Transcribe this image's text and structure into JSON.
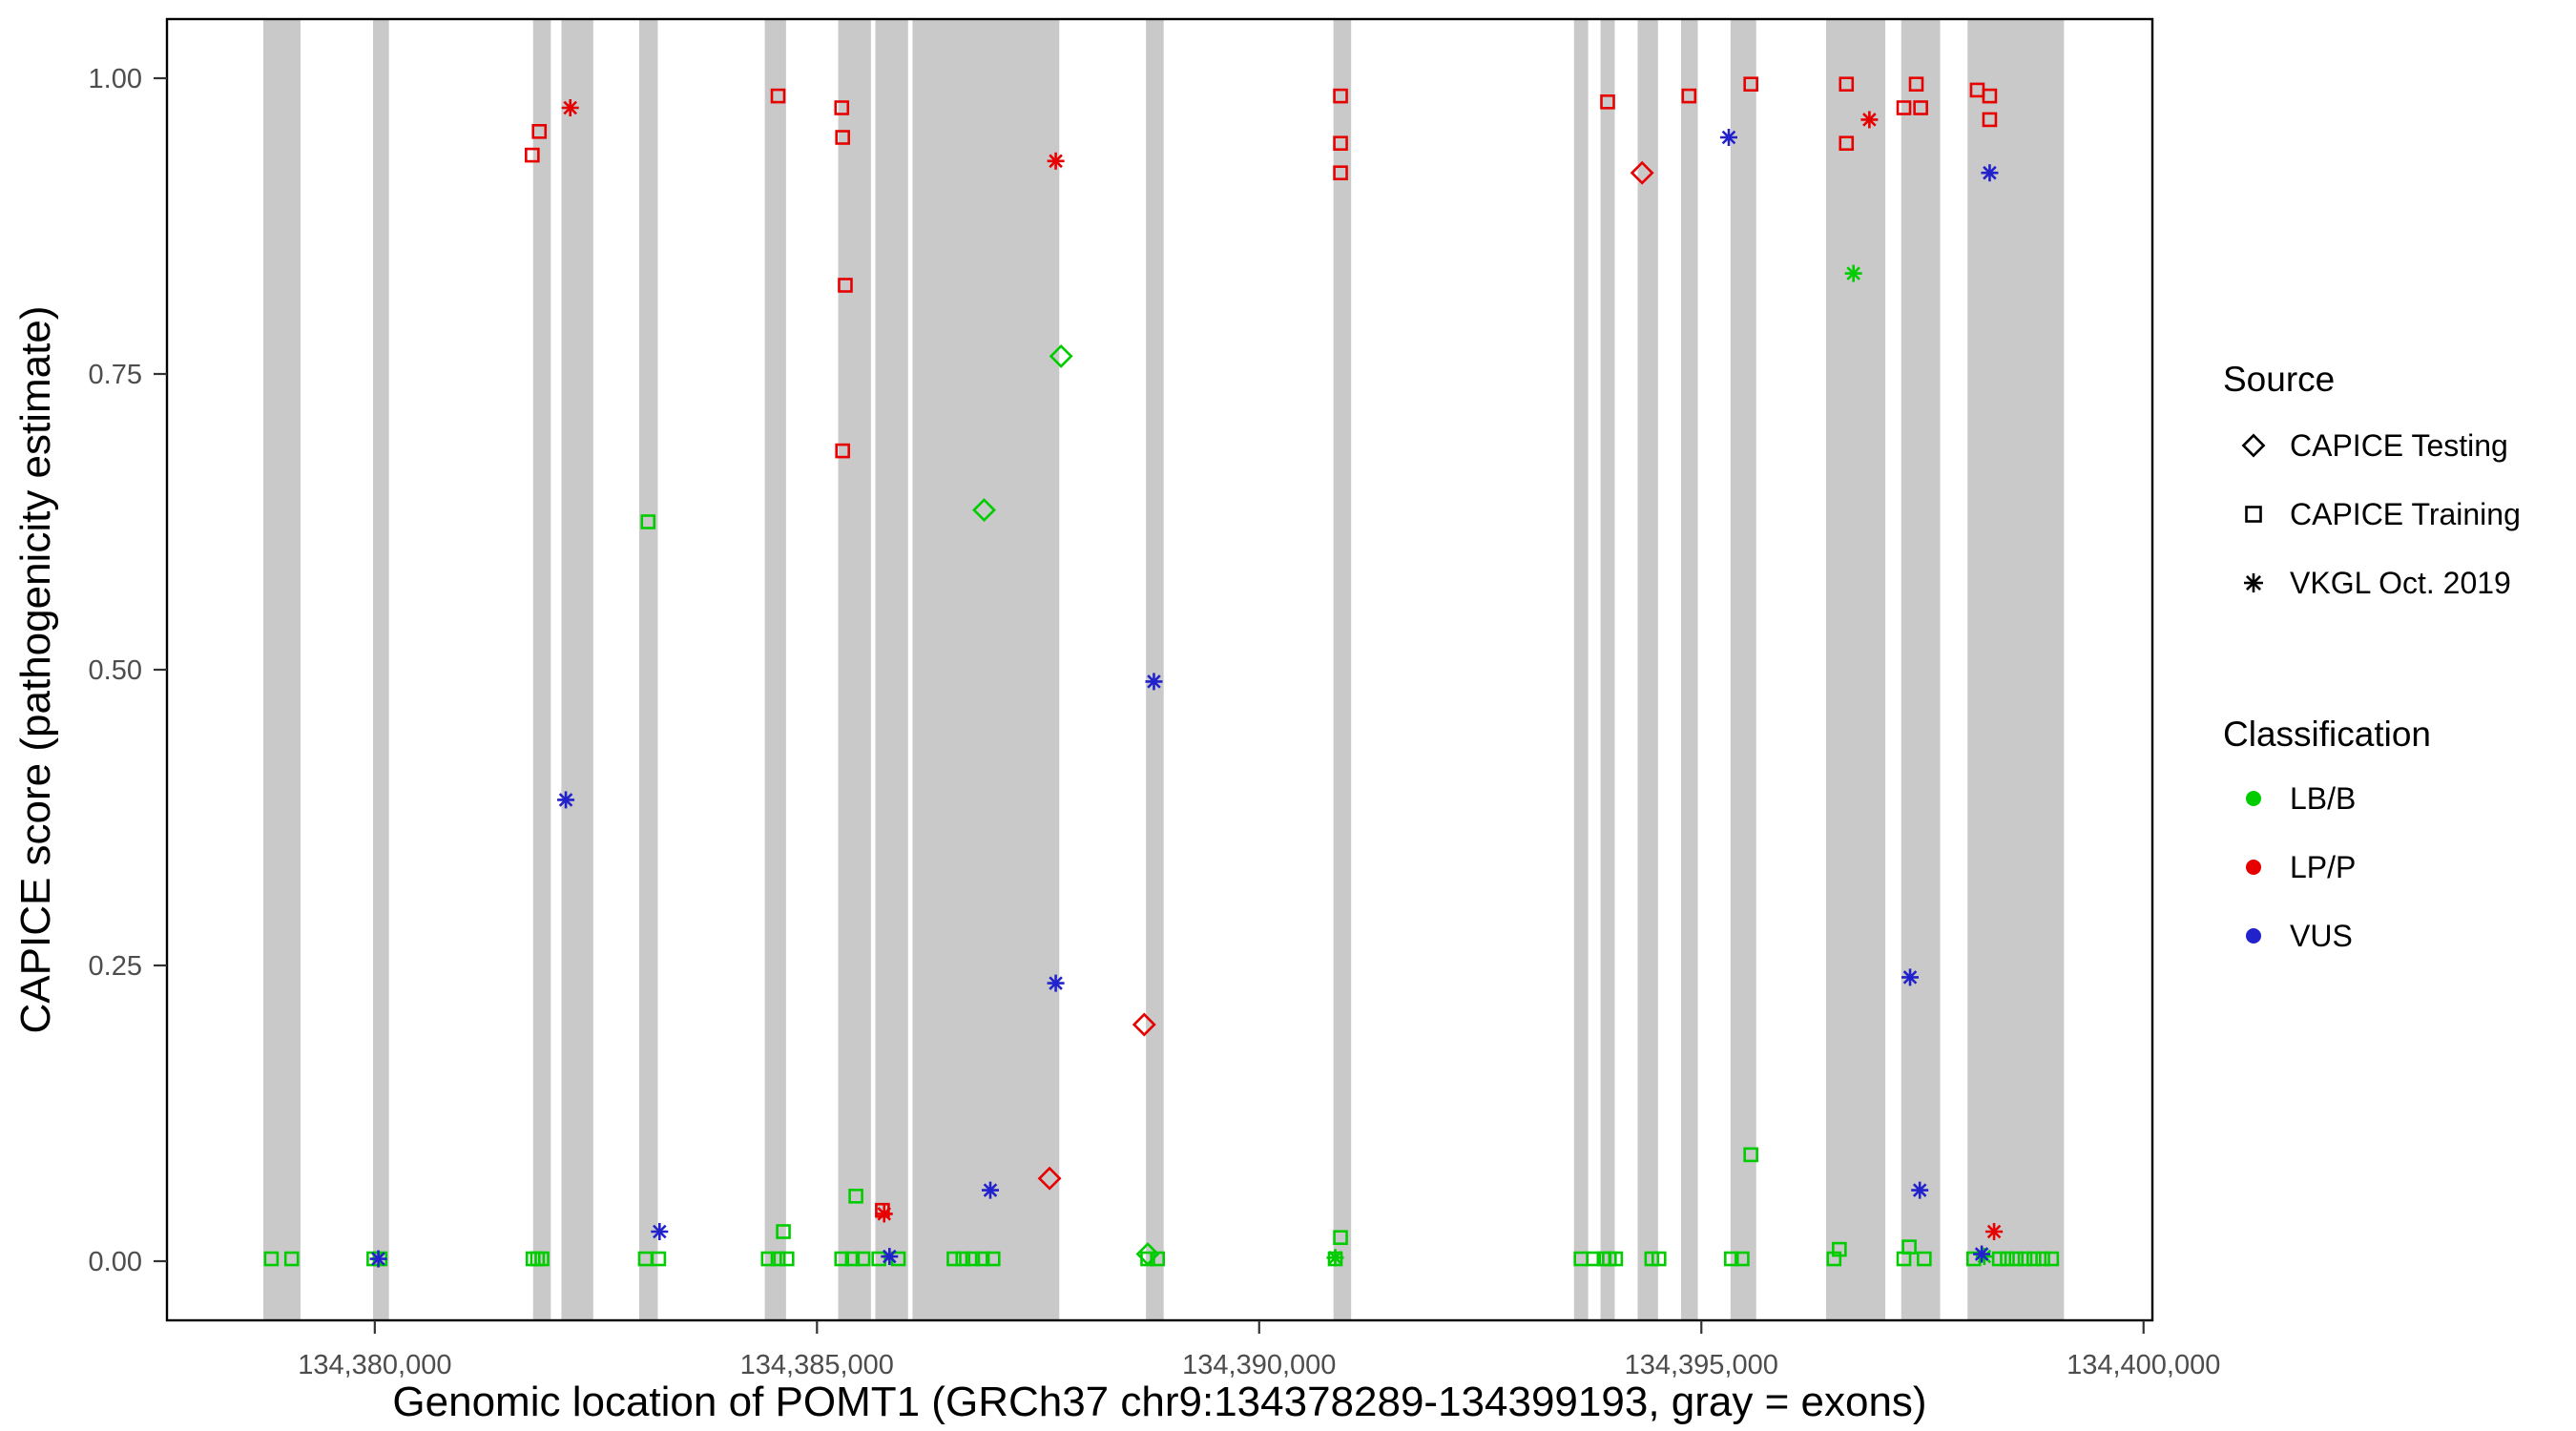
{
  "chart_data": {
    "type": "scatter",
    "title": "",
    "xlabel": "Genomic location of POMT1 (GRCh37 chr9:134378289-134399193, gray = exons)",
    "ylabel": "CAPICE score (pathogenicity estimate)",
    "xlim": [
      134377650,
      134400100
    ],
    "ylim": [
      -0.05,
      1.05
    ],
    "x_ticks": [
      {
        "value": 134380000,
        "label": "134,380,000"
      },
      {
        "value": 134385000,
        "label": "134,385,000"
      },
      {
        "value": 134390000,
        "label": "134,390,000"
      },
      {
        "value": 134395000,
        "label": "134,395,000"
      },
      {
        "value": 134400000,
        "label": "134,400,000"
      }
    ],
    "y_ticks": [
      {
        "value": 0.0,
        "label": "0.00"
      },
      {
        "value": 0.25,
        "label": "0.25"
      },
      {
        "value": 0.5,
        "label": "0.50"
      },
      {
        "value": 0.75,
        "label": "0.75"
      },
      {
        "value": 1.0,
        "label": "1.00"
      }
    ],
    "colors": {
      "LB/B": "#00CC00",
      "LP/P": "#E60000",
      "VUS": "#2222CC",
      "exon": "#C9C9C9",
      "axis_text": "#4D4D4D",
      "axis_line": "#000000"
    },
    "legend": {
      "source": {
        "title": "Source",
        "items": [
          {
            "label": "CAPICE Testing",
            "shape": "diamond"
          },
          {
            "label": "CAPICE Training",
            "shape": "square"
          },
          {
            "label": "VKGL Oct. 2019",
            "shape": "asterisk"
          }
        ]
      },
      "classification": {
        "title": "Classification",
        "items": [
          {
            "label": "LB/B",
            "color": "#00CC00"
          },
          {
            "label": "LP/P",
            "color": "#E60000"
          },
          {
            "label": "VUS",
            "color": "#2222CC"
          }
        ]
      }
    },
    "exons": [
      [
        134378740,
        134379160
      ],
      [
        134379980,
        134380160
      ],
      [
        134381790,
        134381990
      ],
      [
        134382110,
        134382470
      ],
      [
        134382990,
        134383200
      ],
      [
        134384410,
        134384650
      ],
      [
        134385240,
        134385610
      ],
      [
        134385660,
        134386030
      ],
      [
        134386080,
        134387740
      ],
      [
        134388720,
        134388920
      ],
      [
        134390840,
        134391040
      ],
      [
        134393560,
        134393720
      ],
      [
        134393860,
        134394020
      ],
      [
        134394280,
        134394510
      ],
      [
        134394770,
        134394960
      ],
      [
        134395330,
        134395620
      ],
      [
        134396410,
        134397080
      ],
      [
        134397260,
        134397700
      ],
      [
        134398010,
        134399100
      ]
    ],
    "series": [
      {
        "name": "CAPICE Training / LP/P",
        "source": "CAPICE Training",
        "class": "LP/P",
        "points": [
          [
            134381780,
            0.935
          ],
          [
            134381860,
            0.955
          ],
          [
            134384560,
            0.985
          ],
          [
            134385280,
            0.975
          ],
          [
            134385290,
            0.95
          ],
          [
            134385320,
            0.825
          ],
          [
            134385290,
            0.685
          ],
          [
            134385740,
            0.043
          ],
          [
            134390920,
            0.985
          ],
          [
            134390920,
            0.945
          ],
          [
            134390920,
            0.92
          ],
          [
            134393940,
            0.98
          ],
          [
            134394860,
            0.985
          ],
          [
            134395560,
            0.995
          ],
          [
            134396640,
            0.995
          ],
          [
            134396640,
            0.945
          ],
          [
            134397290,
            0.975
          ],
          [
            134397430,
            0.995
          ],
          [
            134397480,
            0.975
          ],
          [
            134398120,
            0.99
          ],
          [
            134398260,
            0.985
          ],
          [
            134398260,
            0.965
          ]
        ]
      },
      {
        "name": "CAPICE Testing / LP/P",
        "source": "CAPICE Testing",
        "class": "LP/P",
        "points": [
          [
            134387630,
            0.07
          ],
          [
            134388700,
            0.2
          ],
          [
            134394330,
            0.92
          ]
        ]
      },
      {
        "name": "VKGL Oct. 2019 / LP/P",
        "source": "VKGL Oct. 2019",
        "class": "LP/P",
        "points": [
          [
            134382210,
            0.975
          ],
          [
            134385760,
            0.04
          ],
          [
            134387700,
            0.93
          ],
          [
            134396900,
            0.965
          ],
          [
            134398310,
            0.025
          ]
        ]
      },
      {
        "name": "CAPICE Training / LB/B",
        "source": "CAPICE Training",
        "class": "LB/B",
        "points": [
          [
            134383090,
            0.625
          ],
          [
            134384620,
            0.025
          ],
          [
            134385440,
            0.055
          ],
          [
            134390920,
            0.02
          ],
          [
            134395560,
            0.09
          ],
          [
            134396560,
            0.01
          ],
          [
            134397350,
            0.012
          ],
          [
            134378830,
            0.002
          ],
          [
            134379060,
            0.002
          ],
          [
            134379990,
            0.002
          ],
          [
            134380060,
            0.002
          ],
          [
            134381790,
            0.002
          ],
          [
            134381840,
            0.002
          ],
          [
            134381890,
            0.002
          ],
          [
            134383060,
            0.002
          ],
          [
            134383210,
            0.002
          ],
          [
            134384450,
            0.002
          ],
          [
            134384560,
            0.002
          ],
          [
            134384660,
            0.002
          ],
          [
            134385280,
            0.002
          ],
          [
            134385400,
            0.002
          ],
          [
            134385520,
            0.002
          ],
          [
            134385700,
            0.002
          ],
          [
            134385920,
            0.002
          ],
          [
            134386550,
            0.002
          ],
          [
            134386650,
            0.002
          ],
          [
            134386760,
            0.002
          ],
          [
            134386870,
            0.002
          ],
          [
            134386990,
            0.002
          ],
          [
            134388740,
            0.002
          ],
          [
            134388850,
            0.002
          ],
          [
            134390860,
            0.002
          ],
          [
            134393640,
            0.002
          ],
          [
            134393780,
            0.002
          ],
          [
            134393900,
            0.002
          ],
          [
            134393960,
            0.002
          ],
          [
            134394030,
            0.002
          ],
          [
            134394440,
            0.002
          ],
          [
            134394520,
            0.002
          ],
          [
            134395340,
            0.002
          ],
          [
            134395460,
            0.002
          ],
          [
            134396500,
            0.002
          ],
          [
            134397290,
            0.002
          ],
          [
            134397520,
            0.002
          ],
          [
            134398080,
            0.002
          ],
          [
            134398370,
            0.002
          ],
          [
            134398460,
            0.002
          ],
          [
            134398560,
            0.002
          ],
          [
            134398660,
            0.002
          ],
          [
            134398760,
            0.002
          ],
          [
            134398860,
            0.002
          ],
          [
            134398960,
            0.002
          ]
        ]
      },
      {
        "name": "CAPICE Testing / LB/B",
        "source": "CAPICE Testing",
        "class": "LB/B",
        "points": [
          [
            134386890,
            0.635
          ],
          [
            134387760,
            0.765
          ],
          [
            134388740,
            0.006
          ]
        ]
      },
      {
        "name": "VKGL Oct. 2019 / LB/B",
        "source": "VKGL Oct. 2019",
        "class": "LB/B",
        "points": [
          [
            134396720,
            0.835
          ],
          [
            134398200,
            0.004
          ],
          [
            134390860,
            0.003
          ]
        ]
      },
      {
        "name": "VKGL Oct. 2019 / VUS",
        "source": "VKGL Oct. 2019",
        "class": "VUS",
        "points": [
          [
            134380040,
            0.002
          ],
          [
            134382160,
            0.39
          ],
          [
            134383220,
            0.025
          ],
          [
            134385820,
            0.004
          ],
          [
            134386960,
            0.06
          ],
          [
            134387700,
            0.235
          ],
          [
            134388810,
            0.49
          ],
          [
            134395310,
            0.95
          ],
          [
            134397360,
            0.24
          ],
          [
            134397470,
            0.06
          ],
          [
            134398260,
            0.92
          ],
          [
            134398170,
            0.006
          ]
        ]
      }
    ]
  }
}
